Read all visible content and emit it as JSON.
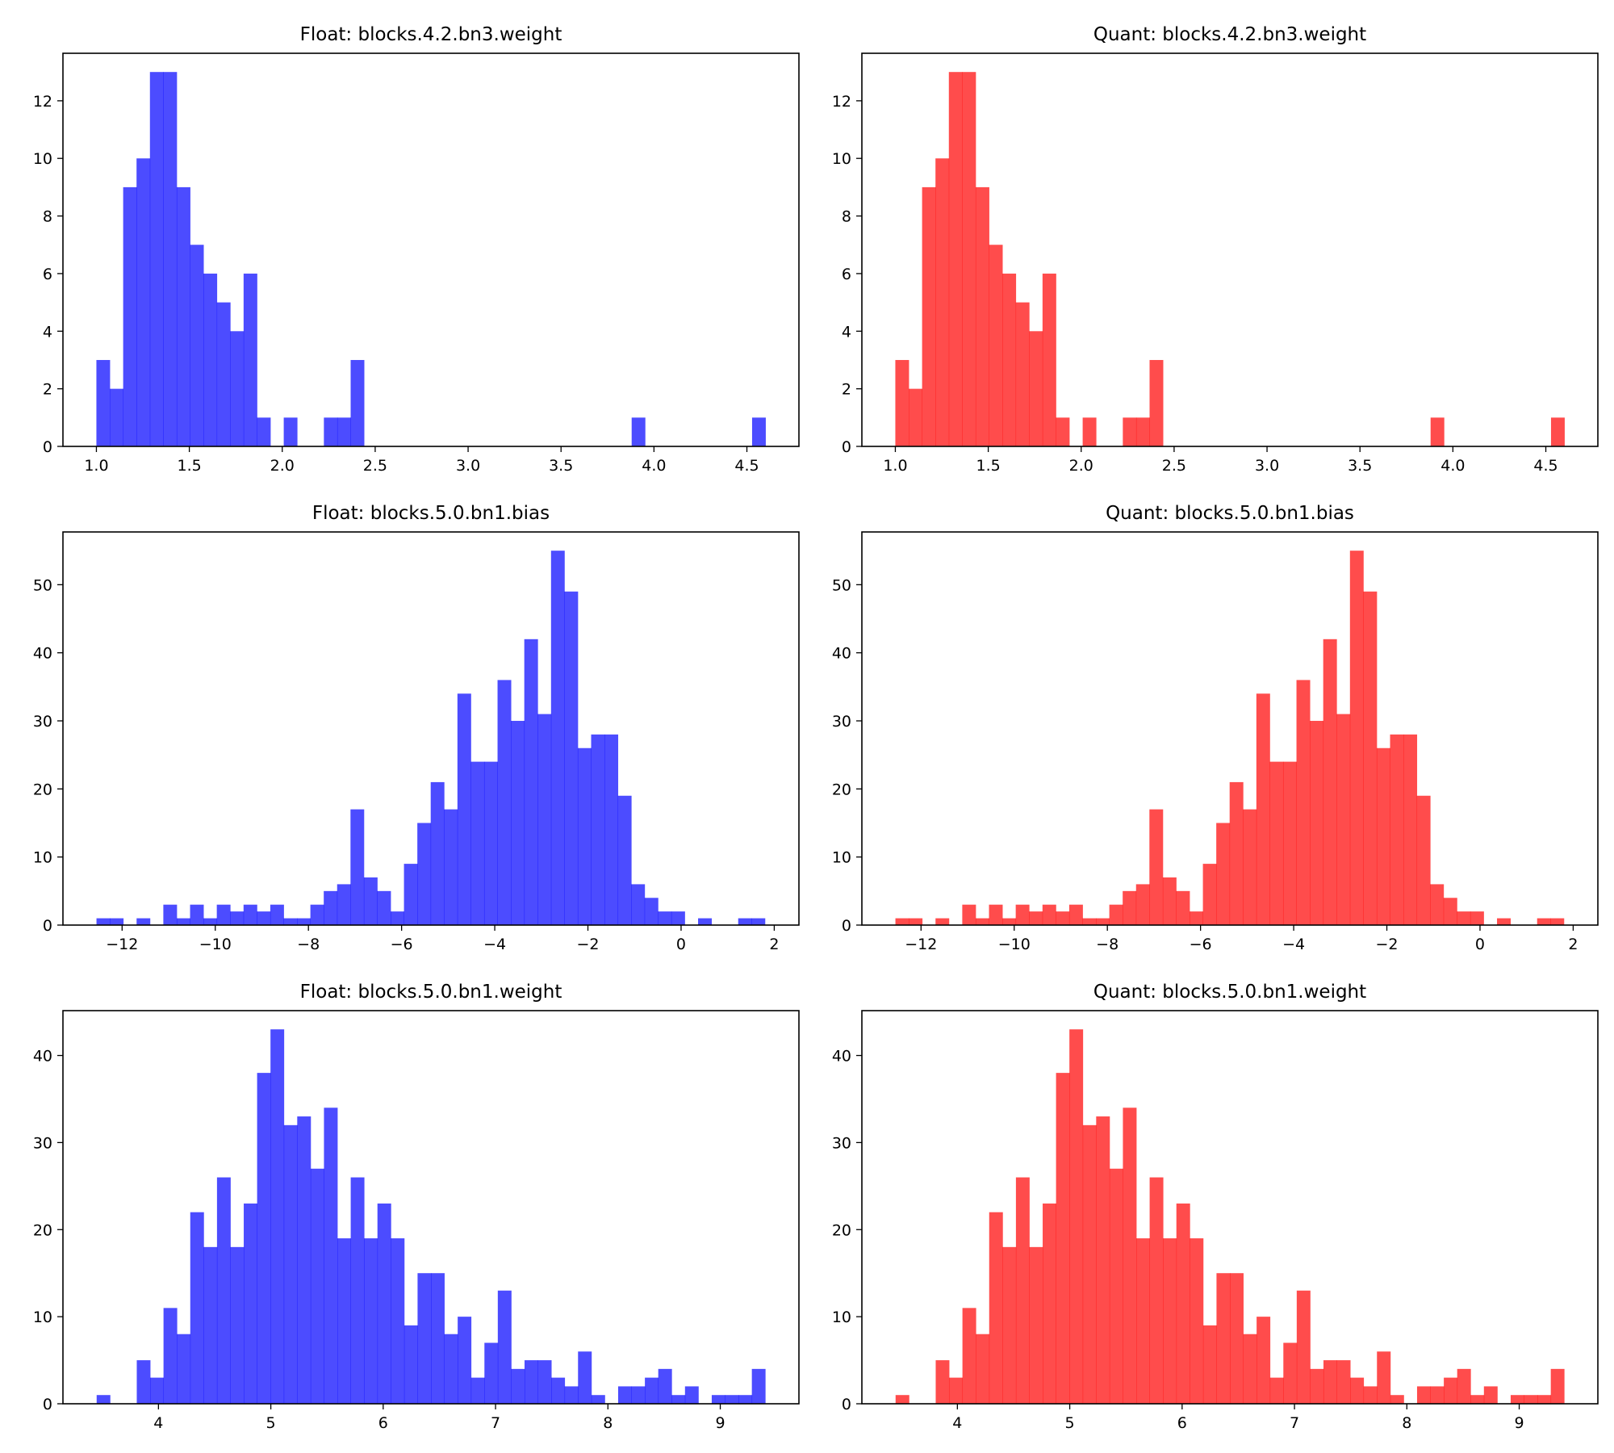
{
  "chart_data": [
    {
      "type": "bar",
      "title": "Float: blocks.4.2.bn3.weight",
      "color": "#0000ff",
      "opacity": 0.7,
      "bin_start": 1.0,
      "bin_width": 0.072,
      "values": [
        3,
        2,
        9,
        10,
        13,
        13,
        9,
        7,
        6,
        5,
        4,
        6,
        1,
        0,
        1,
        0,
        0,
        1,
        1,
        3,
        0,
        0,
        0,
        0,
        0,
        0,
        0,
        0,
        0,
        0,
        0,
        0,
        0,
        0,
        0,
        0,
        0,
        0,
        0,
        0,
        1,
        0,
        0,
        0,
        0,
        0,
        0,
        0,
        0,
        1
      ],
      "xlim": [
        0.82,
        4.78
      ],
      "ylim": [
        0,
        13.65
      ],
      "xticks": [
        1.0,
        1.5,
        2.0,
        2.5,
        3.0,
        3.5,
        4.0,
        4.5
      ],
      "xtick_labels": [
        "1.0",
        "1.5",
        "2.0",
        "2.5",
        "3.0",
        "3.5",
        "4.0",
        "4.5"
      ],
      "yticks": [
        0,
        2,
        4,
        6,
        8,
        10,
        12
      ],
      "ytick_labels": [
        "0",
        "2",
        "4",
        "6",
        "8",
        "10",
        "12"
      ],
      "grid": false
    },
    {
      "type": "bar",
      "title": "Quant: blocks.4.2.bn3.weight",
      "color": "#ff0000",
      "opacity": 0.7,
      "bin_start": 1.0,
      "bin_width": 0.072,
      "values": [
        3,
        2,
        9,
        10,
        13,
        13,
        9,
        7,
        6,
        5,
        4,
        6,
        1,
        0,
        1,
        0,
        0,
        1,
        1,
        3,
        0,
        0,
        0,
        0,
        0,
        0,
        0,
        0,
        0,
        0,
        0,
        0,
        0,
        0,
        0,
        0,
        0,
        0,
        0,
        0,
        1,
        0,
        0,
        0,
        0,
        0,
        0,
        0,
        0,
        1
      ],
      "xlim": [
        0.82,
        4.78
      ],
      "ylim": [
        0,
        13.65
      ],
      "xticks": [
        1.0,
        1.5,
        2.0,
        2.5,
        3.0,
        3.5,
        4.0,
        4.5
      ],
      "xtick_labels": [
        "1.0",
        "1.5",
        "2.0",
        "2.5",
        "3.0",
        "3.5",
        "4.0",
        "4.5"
      ],
      "yticks": [
        0,
        2,
        4,
        6,
        8,
        10,
        12
      ],
      "ytick_labels": [
        "0",
        "2",
        "4",
        "6",
        "8",
        "10",
        "12"
      ],
      "grid": false
    },
    {
      "type": "bar",
      "title": "Float: blocks.5.0.bn1.bias",
      "color": "#0000ff",
      "opacity": 0.7,
      "bin_start": -12.55,
      "bin_width": 0.287,
      "values": [
        1,
        1,
        0,
        1,
        0,
        3,
        1,
        3,
        1,
        3,
        2,
        3,
        2,
        3,
        1,
        1,
        3,
        5,
        6,
        17,
        7,
        5,
        2,
        9,
        15,
        21,
        17,
        34,
        24,
        24,
        36,
        30,
        42,
        31,
        55,
        49,
        26,
        28,
        28,
        19,
        6,
        4,
        2,
        2,
        0,
        1,
        0,
        0,
        1,
        1
      ],
      "xlim": [
        -13.27,
        2.53
      ],
      "ylim": [
        0,
        57.75
      ],
      "xticks": [
        -12,
        -10,
        -8,
        -6,
        -4,
        -2,
        0,
        2
      ],
      "xtick_labels": [
        "−12",
        "−10",
        "−8",
        "−6",
        "−4",
        "−2",
        "0",
        "2"
      ],
      "yticks": [
        0,
        10,
        20,
        30,
        40,
        50
      ],
      "ytick_labels": [
        "0",
        "10",
        "20",
        "30",
        "40",
        "50"
      ],
      "grid": false
    },
    {
      "type": "bar",
      "title": "Quant: blocks.5.0.bn1.bias",
      "color": "#ff0000",
      "opacity": 0.7,
      "bin_start": -12.55,
      "bin_width": 0.287,
      "values": [
        1,
        1,
        0,
        1,
        0,
        3,
        1,
        3,
        1,
        3,
        2,
        3,
        2,
        3,
        1,
        1,
        3,
        5,
        6,
        17,
        7,
        5,
        2,
        9,
        15,
        21,
        17,
        34,
        24,
        24,
        36,
        30,
        42,
        31,
        55,
        49,
        26,
        28,
        28,
        19,
        6,
        4,
        2,
        2,
        0,
        1,
        0,
        0,
        1,
        1
      ],
      "xlim": [
        -13.27,
        2.53
      ],
      "ylim": [
        0,
        57.75
      ],
      "xticks": [
        -12,
        -10,
        -8,
        -6,
        -4,
        -2,
        0,
        2
      ],
      "xtick_labels": [
        "−12",
        "−10",
        "−8",
        "−6",
        "−4",
        "−2",
        "0",
        "2"
      ],
      "yticks": [
        0,
        10,
        20,
        30,
        40,
        50
      ],
      "ytick_labels": [
        "0",
        "10",
        "20",
        "30",
        "40",
        "50"
      ],
      "grid": false
    },
    {
      "type": "bar",
      "title": "Float: blocks.5.0.bn1.weight",
      "color": "#0000ff",
      "opacity": 0.7,
      "bin_start": 3.45,
      "bin_width": 0.119,
      "values": [
        1,
        0,
        0,
        5,
        3,
        11,
        8,
        22,
        18,
        26,
        18,
        23,
        38,
        43,
        32,
        33,
        27,
        34,
        19,
        26,
        19,
        23,
        19,
        9,
        15,
        15,
        8,
        10,
        3,
        7,
        13,
        4,
        5,
        5,
        3,
        2,
        6,
        1,
        0,
        2,
        2,
        3,
        4,
        1,
        2,
        0,
        1,
        1,
        1,
        4
      ],
      "xlim": [
        3.15,
        9.7
      ],
      "ylim": [
        0,
        45.15
      ],
      "xticks": [
        4,
        5,
        6,
        7,
        8,
        9
      ],
      "xtick_labels": [
        "4",
        "5",
        "6",
        "7",
        "8",
        "9"
      ],
      "yticks": [
        0,
        10,
        20,
        30,
        40
      ],
      "ytick_labels": [
        "0",
        "10",
        "20",
        "30",
        "40"
      ],
      "grid": false
    },
    {
      "type": "bar",
      "title": "Quant: blocks.5.0.bn1.weight",
      "color": "#ff0000",
      "opacity": 0.7,
      "bin_start": 3.45,
      "bin_width": 0.119,
      "values": [
        1,
        0,
        0,
        5,
        3,
        11,
        8,
        22,
        18,
        26,
        18,
        23,
        38,
        43,
        32,
        33,
        27,
        34,
        19,
        26,
        19,
        23,
        19,
        9,
        15,
        15,
        8,
        10,
        3,
        7,
        13,
        4,
        5,
        5,
        3,
        2,
        6,
        1,
        0,
        2,
        2,
        3,
        4,
        1,
        2,
        0,
        1,
        1,
        1,
        4
      ],
      "xlim": [
        3.15,
        9.7
      ],
      "ylim": [
        0,
        45.15
      ],
      "xticks": [
        4,
        5,
        6,
        7,
        8,
        9
      ],
      "xtick_labels": [
        "4",
        "5",
        "6",
        "7",
        "8",
        "9"
      ],
      "yticks": [
        0,
        10,
        20,
        30,
        40
      ],
      "ytick_labels": [
        "0",
        "10",
        "20",
        "30",
        "40"
      ],
      "grid": false
    }
  ]
}
